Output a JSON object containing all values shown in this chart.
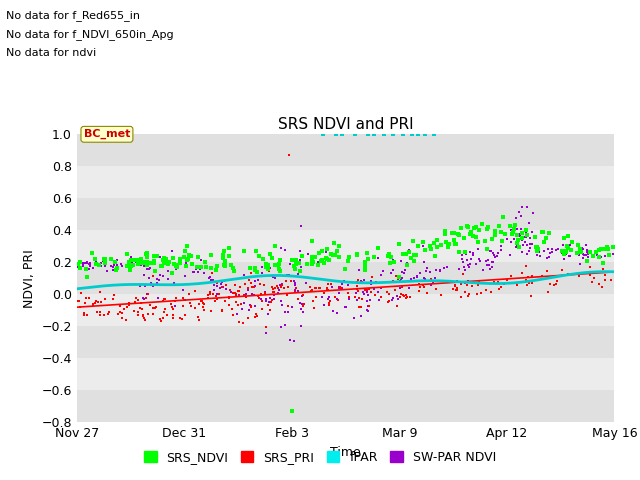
{
  "title": "SRS NDVI and PRI",
  "xlabel": "Time",
  "ylabel": "NDVI, PRI",
  "ylim": [
    -0.8,
    1.0
  ],
  "annotations": [
    "No data for f_Red655_in",
    "No data for f_NDVI_650in_Apg",
    "No data for ndvi"
  ],
  "tooltip_label": "BC_met",
  "xtick_labels": [
    "Nov 27",
    "Dec 31",
    "Feb 3",
    "Mar 9",
    "Apr 12",
    "May 16"
  ],
  "xtick_days": [
    0,
    34,
    68,
    102,
    136,
    170
  ],
  "total_days": 170,
  "legend_entries": [
    "SRS_NDVI",
    "SRS_PRI",
    "fPAR",
    "SW-PAR NDVI"
  ],
  "legend_colors": [
    "#00ff00",
    "#ff0000",
    "#00eeee",
    "#9900cc"
  ],
  "colors": {
    "ndvi": "#00ff00",
    "pri": "#ff0000",
    "fpar_line": "#00cccc",
    "swpar": "#9900cc",
    "fpar_dots": "#00cccc"
  },
  "bg_bands": [
    {
      "ymin": 0.8,
      "ymax": 1.0,
      "color": "#e0e0e0"
    },
    {
      "ymin": 0.6,
      "ymax": 0.8,
      "color": "#ececec"
    },
    {
      "ymin": 0.4,
      "ymax": 0.6,
      "color": "#e0e0e0"
    },
    {
      "ymin": 0.2,
      "ymax": 0.4,
      "color": "#ececec"
    },
    {
      "ymin": 0.0,
      "ymax": 0.2,
      "color": "#e0e0e0"
    },
    {
      "ymin": -0.2,
      "ymax": 0.0,
      "color": "#ececec"
    },
    {
      "ymin": -0.4,
      "ymax": -0.2,
      "color": "#e0e0e0"
    },
    {
      "ymin": -0.6,
      "ymax": -0.4,
      "color": "#ececec"
    },
    {
      "ymin": -0.8,
      "ymax": -0.6,
      "color": "#e0e0e0"
    }
  ],
  "figsize": [
    6.4,
    4.8
  ],
  "dpi": 100
}
